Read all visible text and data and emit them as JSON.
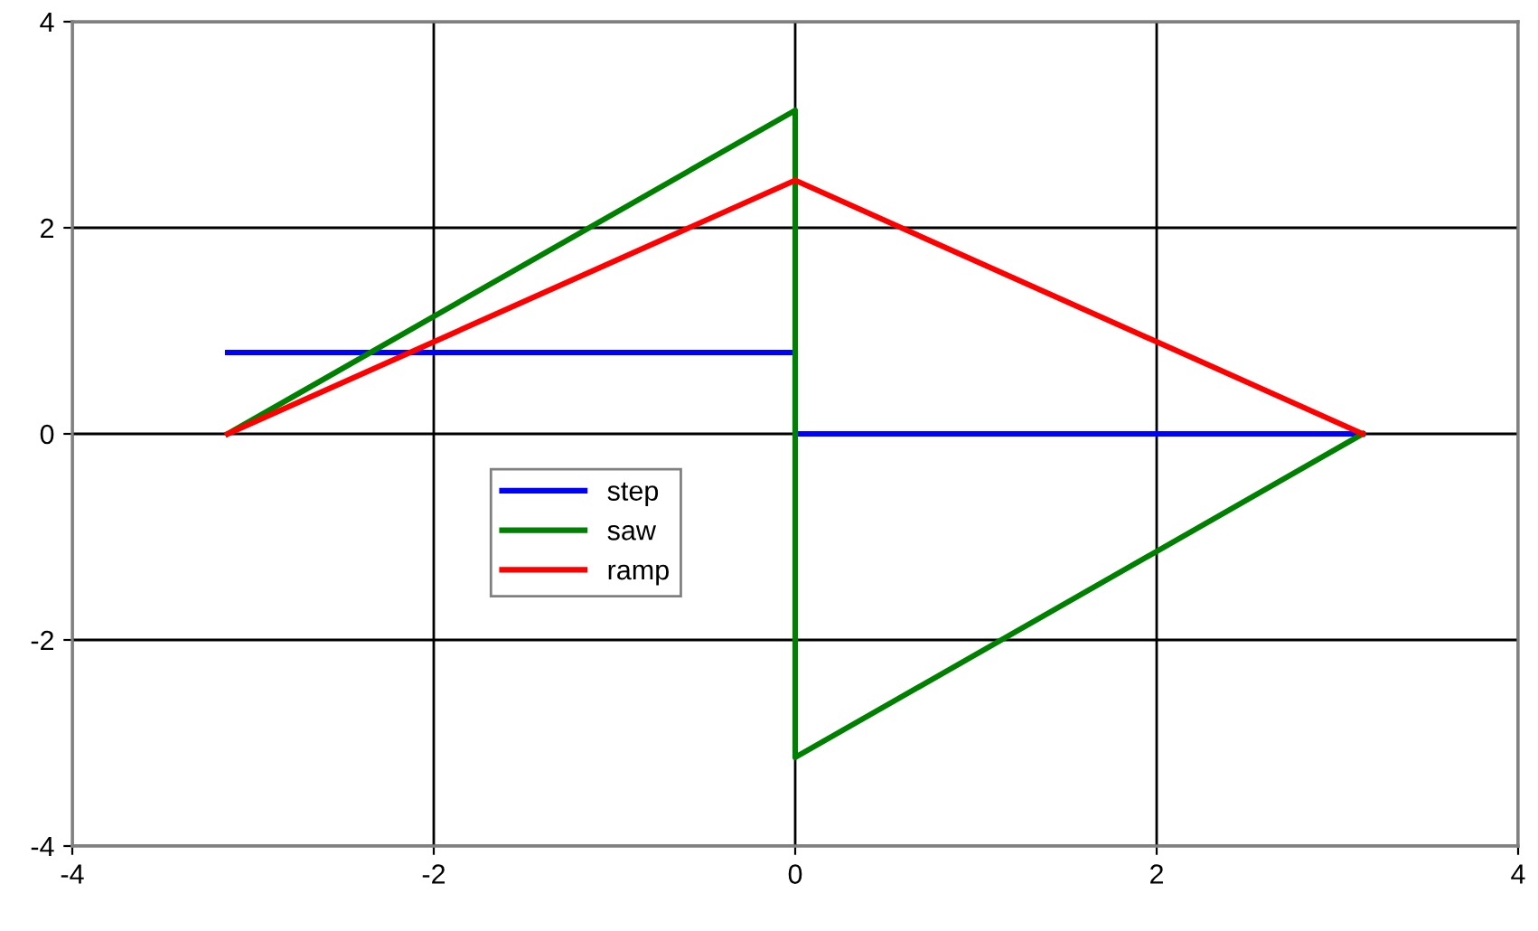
{
  "chart_data": {
    "type": "line",
    "xlim": [
      -4,
      4
    ],
    "ylim": [
      -4,
      4
    ],
    "xticks": [
      -4,
      -2,
      0,
      2,
      4
    ],
    "yticks": [
      -4,
      -2,
      0,
      2,
      4
    ],
    "grid": true,
    "legend": "center left",
    "marker": "none",
    "series": [
      {
        "name": "step",
        "color": "#0000ff",
        "x": [
          -3.14,
          0,
          0,
          3.14
        ],
        "values": [
          0.79,
          0.79,
          0,
          0
        ]
      },
      {
        "name": "saw",
        "color": "#008000",
        "x": [
          -3.14,
          0,
          0,
          3.14
        ],
        "values": [
          0,
          3.14,
          -3.14,
          0
        ]
      },
      {
        "name": "ramp",
        "color": "#ff0000",
        "x": [
          -3.14,
          0,
          3.14
        ],
        "values": [
          0,
          2.46,
          0
        ]
      }
    ]
  }
}
